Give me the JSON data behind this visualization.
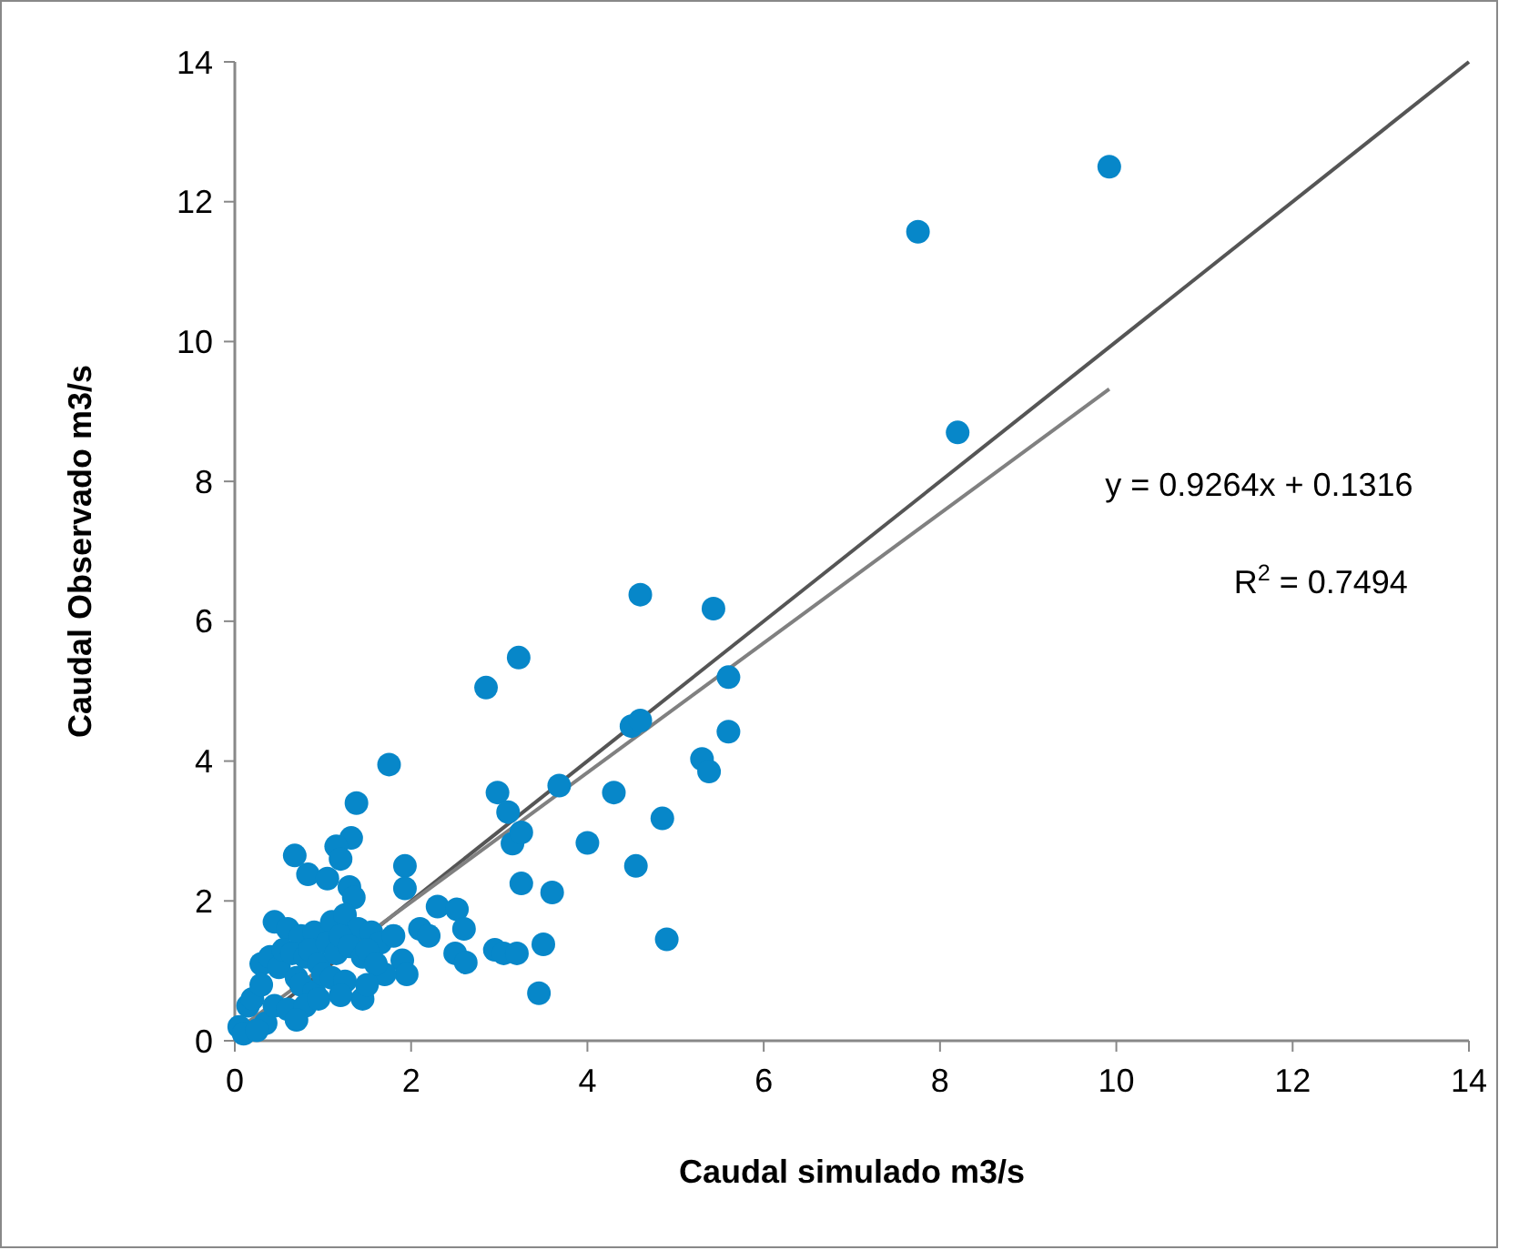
{
  "chart_data": {
    "type": "scatter",
    "xlabel": "Caudal simulado m3/s",
    "ylabel": "Caudal Observado m3/s",
    "xlim": [
      0,
      14
    ],
    "ylim": [
      0,
      14
    ],
    "xticks": [
      0,
      2,
      4,
      6,
      8,
      10,
      12,
      14
    ],
    "yticks": [
      0,
      2,
      4,
      6,
      8,
      10,
      12,
      14
    ],
    "marker": "circle",
    "annotations": [
      "y = 0.9264x + 0.1316",
      "R$^{2}$ = 0.7494"
    ],
    "series": [
      {
        "type": "scatter",
        "color": "#0787c9",
        "x": [
          9.92,
          7.75,
          8.2,
          4.6,
          5.43,
          5.6,
          5.6,
          4.5,
          4.6,
          5.3,
          5.38,
          2.85,
          3.22,
          1.75,
          3.68,
          4.3,
          2.98,
          3.1,
          4.85,
          3.15,
          3.25,
          4.0,
          3.25,
          3.6,
          4.55,
          1.93,
          1.38,
          1.32,
          0.68,
          1.15,
          0.83,
          1.05,
          1.2,
          1.3,
          1.35,
          1.93,
          2.3,
          2.52,
          2.6,
          2.1,
          2.2,
          2.95,
          3.05,
          3.2,
          3.5,
          2.5,
          2.62,
          3.45,
          4.9,
          1.9,
          1.95,
          1.7,
          1.45,
          0.45,
          0.6,
          0.75,
          0.9,
          1.1,
          1.25,
          1.4,
          1.55,
          1.65,
          1.8,
          0.3,
          0.4,
          0.5,
          0.55,
          0.65,
          0.8,
          0.85,
          0.95,
          1.05,
          1.15,
          1.2,
          1.3,
          1.45,
          1.5,
          1.6,
          0.15,
          0.2,
          0.3,
          0.7,
          0.75,
          0.9,
          1.0,
          1.1,
          1.25,
          1.5,
          0.05,
          0.1,
          0.35,
          0.45,
          0.6,
          0.8,
          0.95,
          1.2,
          0.7,
          0.25
        ],
        "values": [
          12.5,
          11.57,
          8.7,
          6.38,
          6.18,
          5.2,
          4.42,
          4.5,
          4.58,
          4.03,
          3.85,
          5.05,
          5.48,
          3.95,
          3.65,
          3.55,
          3.55,
          3.27,
          3.18,
          2.82,
          2.98,
          2.83,
          2.25,
          2.12,
          2.5,
          2.5,
          3.4,
          2.9,
          2.65,
          2.78,
          2.38,
          2.32,
          2.6,
          2.2,
          2.05,
          2.18,
          1.92,
          1.88,
          1.6,
          1.6,
          1.5,
          1.3,
          1.25,
          1.25,
          1.38,
          1.25,
          1.12,
          0.68,
          1.45,
          1.15,
          0.95,
          0.95,
          0.6,
          1.7,
          1.6,
          1.5,
          1.55,
          1.7,
          1.8,
          1.6,
          1.55,
          1.4,
          1.5,
          1.1,
          1.2,
          1.05,
          1.3,
          1.25,
          1.2,
          1.3,
          1.1,
          1.4,
          1.25,
          1.5,
          1.35,
          1.2,
          1.3,
          1.1,
          0.5,
          0.6,
          0.8,
          0.9,
          0.8,
          0.7,
          0.95,
          0.9,
          0.85,
          0.8,
          0.2,
          0.1,
          0.25,
          0.5,
          0.45,
          0.5,
          0.6,
          0.65,
          0.3,
          0.15
        ]
      },
      {
        "type": "line",
        "color": "#555555",
        "marker": "none",
        "x": [
          0,
          14
        ],
        "values": [
          0,
          14
        ]
      },
      {
        "type": "line",
        "color": "#808080",
        "marker": "none",
        "x": [
          0,
          9.92
        ],
        "values": [
          0.13,
          9.32
        ]
      }
    ]
  }
}
